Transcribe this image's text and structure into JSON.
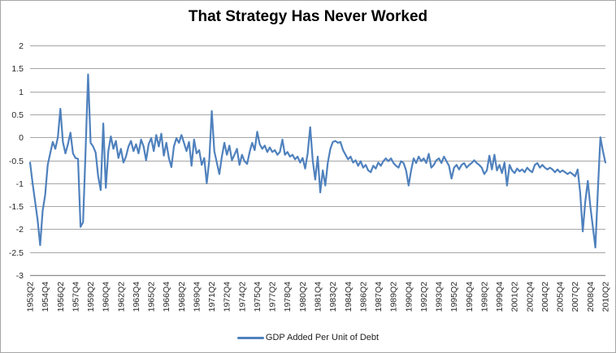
{
  "chart_data": {
    "type": "line",
    "title": "That Strategy Has Never Worked",
    "legend_label": "GDP Added Per Unit of Debt",
    "legend_position": "bottom",
    "grid": true,
    "ylim": [
      -3,
      2
    ],
    "y_tick_step": 0.5,
    "y_tick_labels": [
      "2",
      "1.5",
      "1",
      "0.5",
      "0",
      "-0.5",
      "-1",
      "-1.5",
      "-2",
      "-2.5",
      "-3"
    ],
    "x_start": "1953Q2",
    "x_end": "2010Q2",
    "points_per_tick": 6,
    "x_tick_labels": [
      "1953Q2",
      "1954Q4",
      "1956Q2",
      "1957Q4",
      "1959Q2",
      "1960Q4",
      "1962Q2",
      "1963Q4",
      "1965Q2",
      "1966Q4",
      "1968Q2",
      "1969Q4",
      "1971Q2",
      "1972Q4",
      "1974Q2",
      "1975Q4",
      "1977Q2",
      "1978Q4",
      "1980Q2",
      "1981Q4",
      "1983Q2",
      "1984Q4",
      "1986Q2",
      "1987Q4",
      "1989Q2",
      "1990Q4",
      "1992Q2",
      "1993Q4",
      "1995Q2",
      "1996Q4",
      "1998Q2",
      "1999Q4",
      "2001Q2",
      "2002Q4",
      "2004Q2",
      "2005Q4",
      "2007Q2",
      "2008Q4",
      "2010Q2"
    ],
    "series_name": "GDP Added Per Unit of Debt",
    "values": [
      -0.55,
      -1.0,
      -1.4,
      -1.8,
      -2.35,
      -1.6,
      -1.25,
      -0.6,
      -0.35,
      -0.1,
      -0.25,
      0.0,
      0.62,
      -0.1,
      -0.35,
      -0.15,
      0.1,
      -0.35,
      -0.45,
      -0.47,
      -1.95,
      -1.85,
      -0.3,
      1.37,
      -0.12,
      -0.2,
      -0.33,
      -0.85,
      -1.15,
      0.3,
      -1.1,
      -0.3,
      0.02,
      -0.25,
      -0.08,
      -0.45,
      -0.25,
      -0.55,
      -0.42,
      -0.2,
      -0.08,
      -0.3,
      -0.15,
      -0.35,
      -0.05,
      -0.2,
      -0.5,
      -0.15,
      -0.02,
      -0.3,
      0.05,
      -0.2,
      0.08,
      -0.4,
      -0.12,
      -0.45,
      -0.65,
      -0.2,
      -0.02,
      -0.12,
      0.05,
      -0.12,
      -0.3,
      -0.1,
      -0.62,
      -0.05,
      -0.35,
      -0.28,
      -0.6,
      -0.45,
      -1.0,
      -0.5,
      0.57,
      -0.3,
      -0.55,
      -0.8,
      -0.42,
      -0.12,
      -0.38,
      -0.18,
      -0.5,
      -0.38,
      -0.25,
      -0.6,
      -0.38,
      -0.52,
      -0.58,
      -0.32,
      -0.12,
      -0.28,
      0.12,
      -0.15,
      -0.25,
      -0.18,
      -0.32,
      -0.22,
      -0.32,
      -0.28,
      -0.38,
      -0.32,
      -0.05,
      -0.38,
      -0.32,
      -0.42,
      -0.38,
      -0.48,
      -0.42,
      -0.55,
      -0.45,
      -0.68,
      -0.35,
      0.22,
      -0.5,
      -0.92,
      -0.42,
      -1.2,
      -0.72,
      -1.05,
      -0.55,
      -0.25,
      -0.1,
      -0.08,
      -0.12,
      -0.1,
      -0.28,
      -0.38,
      -0.48,
      -0.42,
      -0.55,
      -0.5,
      -0.62,
      -0.52,
      -0.66,
      -0.6,
      -0.72,
      -0.76,
      -0.62,
      -0.68,
      -0.55,
      -0.62,
      -0.52,
      -0.46,
      -0.52,
      -0.46,
      -0.56,
      -0.62,
      -0.66,
      -0.52,
      -0.56,
      -0.72,
      -1.05,
      -0.72,
      -0.46,
      -0.56,
      -0.42,
      -0.52,
      -0.46,
      -0.56,
      -0.36,
      -0.66,
      -0.6,
      -0.5,
      -0.46,
      -0.56,
      -0.42,
      -0.52,
      -0.62,
      -0.9,
      -0.66,
      -0.6,
      -0.7,
      -0.6,
      -0.56,
      -0.66,
      -0.6,
      -0.56,
      -0.5,
      -0.56,
      -0.6,
      -0.66,
      -0.8,
      -0.72,
      -0.4,
      -0.7,
      -0.38,
      -0.72,
      -0.6,
      -0.78,
      -0.55,
      -1.05,
      -0.6,
      -0.72,
      -0.78,
      -0.68,
      -0.74,
      -0.7,
      -0.76,
      -0.66,
      -0.72,
      -0.76,
      -0.6,
      -0.56,
      -0.66,
      -0.6,
      -0.66,
      -0.7,
      -0.66,
      -0.7,
      -0.76,
      -0.7,
      -0.76,
      -0.72,
      -0.76,
      -0.8,
      -0.76,
      -0.8,
      -0.85,
      -0.7,
      -1.2,
      -2.05,
      -1.4,
      -0.95,
      -1.5,
      -1.95,
      -2.4,
      -1.15,
      0.0,
      -0.3,
      -0.55
    ],
    "colors": {
      "series": "#4F81BD",
      "gridline": "#A6A6A6",
      "axis": "#8C8C8C",
      "tick_text": "#262626",
      "title_text": "#000000",
      "frame_border": "#A6A6A6",
      "background": "#FFFFFF"
    }
  }
}
